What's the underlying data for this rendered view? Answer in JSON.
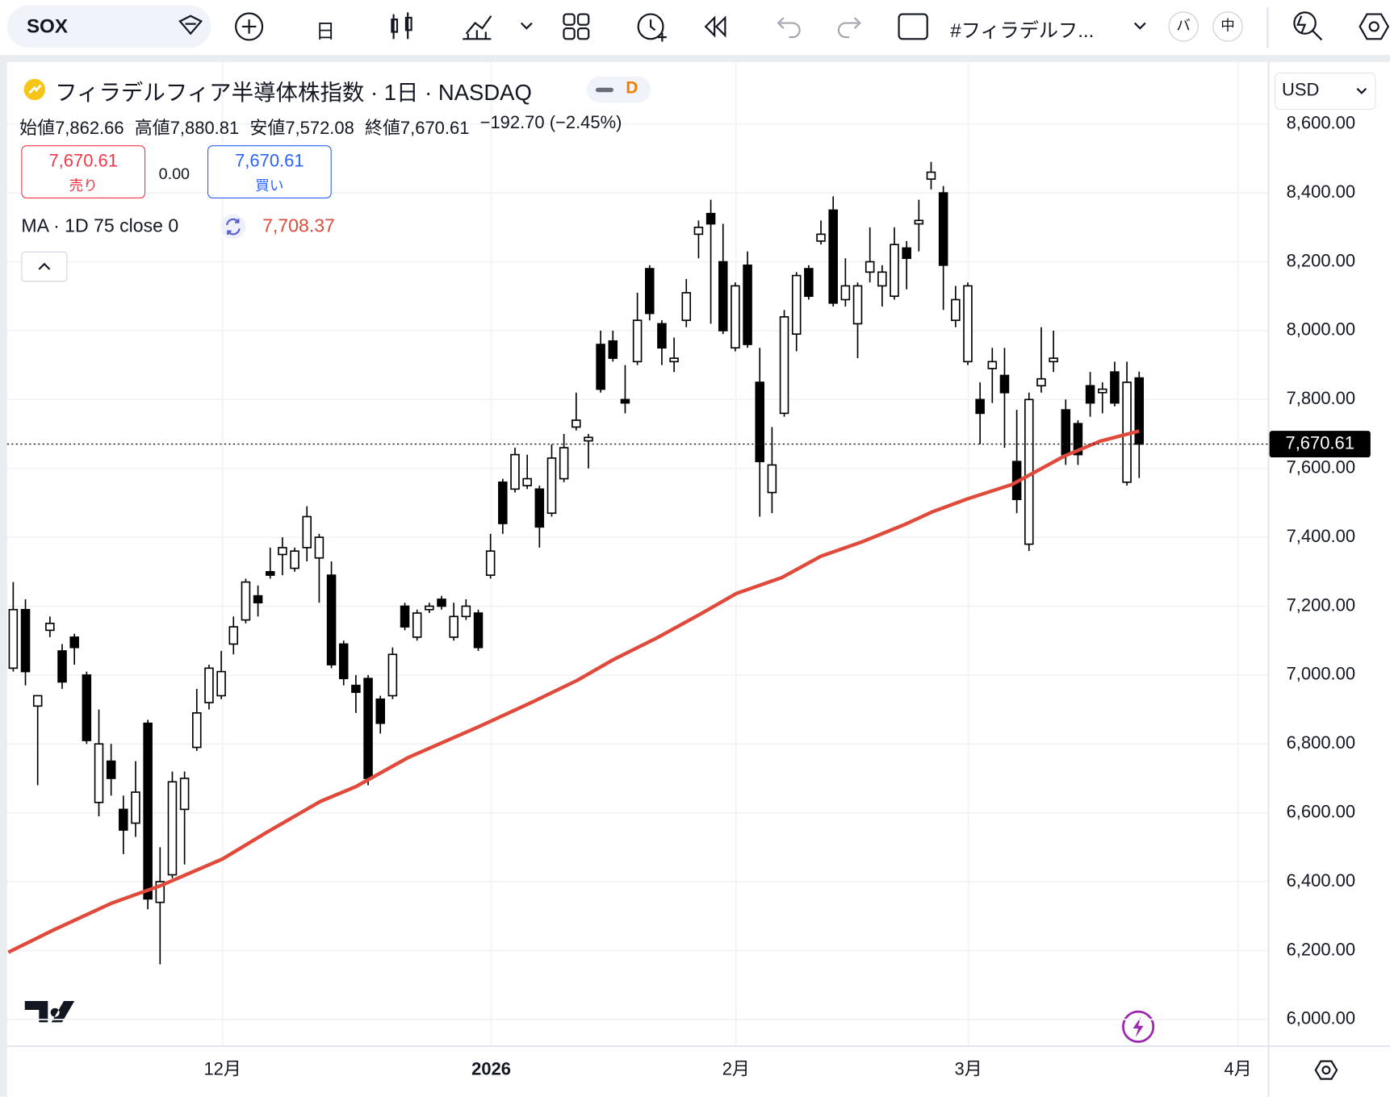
{
  "toolbar": {
    "symbol": "SOX",
    "interval": "日",
    "layout_name": "#フィラデルフ...",
    "btn_left": "バ",
    "btn_right": "中"
  },
  "header": {
    "title": "フィラデルフィア半導体株指数 · 1日 · NASDAQ",
    "badge": "D",
    "ohlc": [
      {
        "label": "始値",
        "value": "7,862.66"
      },
      {
        "label": "高値",
        "value": "7,880.81"
      },
      {
        "label": "安値",
        "value": "7,572.08"
      },
      {
        "label": "終値",
        "value": "7,670.61"
      }
    ],
    "change": "−192.70 (−2.45%)",
    "sell": {
      "price": "7,670.61",
      "label": "売り"
    },
    "spread": "0.00",
    "buy": {
      "price": "7,670.61",
      "label": "買い"
    },
    "indicator": {
      "label": "MA · 1D 75 close 0",
      "value": "7,708.37"
    },
    "currency": "USD",
    "last_price_tag": "7,670.61"
  },
  "chart_data": {
    "type": "candlestick",
    "up_color": "#ffffff",
    "down_color": "#000000",
    "edge_color": "#000000",
    "open": [
      7020,
      7190,
      6910,
      7130,
      7070,
      7110,
      7000,
      6630,
      6750,
      6610,
      6570,
      6860,
      6340,
      6420,
      6610,
      6790,
      6920,
      6940,
      7090,
      7160,
      7230,
      7300,
      7350,
      7310,
      7370,
      7340,
      7290,
      7090,
      6970,
      6990,
      6930,
      6940,
      7200,
      7110,
      7190,
      7220,
      7110,
      7170,
      7180,
      7290,
      7560,
      7540,
      7550,
      7540,
      7470,
      7570,
      7720,
      7680,
      7960,
      7970,
      7800,
      7910,
      8180,
      8020,
      7910,
      8030,
      8280,
      8340,
      8200,
      7950,
      8190,
      7850,
      7530,
      7760,
      7990,
      8180,
      8260,
      8350,
      8090,
      8020,
      8170,
      8130,
      8100,
      8240,
      8310,
      8440,
      8400,
      8030,
      7910,
      7800,
      7890,
      7870,
      7620,
      7380,
      7840,
      7910,
      7770,
      7730,
      7840,
      7820,
      7880,
      7560,
      7862.66
    ],
    "high": [
      7270,
      7220,
      6940,
      7170,
      7090,
      7120,
      7010,
      6900,
      6800,
      6650,
      6750,
      6870,
      6500,
      6720,
      6720,
      6960,
      7030,
      7070,
      7170,
      7280,
      7260,
      7370,
      7400,
      7370,
      7490,
      7410,
      7330,
      7100,
      7000,
      7000,
      6940,
      7080,
      7210,
      7190,
      7210,
      7230,
      7210,
      7220,
      7190,
      7410,
      7570,
      7660,
      7640,
      7550,
      7670,
      7700,
      7820,
      7700,
      8000,
      8000,
      7900,
      8110,
      8190,
      8030,
      7980,
      8150,
      8320,
      8380,
      8310,
      8140,
      8230,
      7950,
      7720,
      8060,
      8170,
      8190,
      8320,
      8390,
      8210,
      8140,
      8300,
      8190,
      8300,
      8260,
      8380,
      8490,
      8420,
      8130,
      8140,
      7850,
      7950,
      7950,
      7770,
      7820,
      8010,
      8000,
      7800,
      7740,
      7880,
      7850,
      7910,
      7910,
      7880.81
    ],
    "low": [
      7010,
      6970,
      6680,
      7110,
      6960,
      7030,
      6800,
      6590,
      6650,
      6480,
      6530,
      6320,
      6160,
      6410,
      6450,
      6780,
      6900,
      6930,
      7060,
      7150,
      7170,
      7280,
      7290,
      7300,
      7330,
      7210,
      7020,
      6970,
      6890,
      6680,
      6830,
      6930,
      7130,
      7100,
      7180,
      7190,
      7100,
      7160,
      7070,
      7280,
      7410,
      7530,
      7540,
      7370,
      7460,
      7560,
      7710,
      7600,
      7820,
      7910,
      7760,
      7900,
      8030,
      7900,
      7880,
      8010,
      8210,
      8020,
      7990,
      7940,
      7950,
      7460,
      7470,
      7750,
      7940,
      8090,
      8250,
      8070,
      8070,
      7920,
      8140,
      8070,
      8090,
      8120,
      8230,
      8410,
      8060,
      8010,
      7900,
      7670,
      7790,
      7660,
      7470,
      7360,
      7820,
      7880,
      7610,
      7610,
      7750,
      7760,
      7780,
      7550,
      7572.08
    ],
    "close": [
      7190,
      7010,
      6940,
      7150,
      6980,
      7080,
      6810,
      6800,
      6700,
      6550,
      6660,
      6350,
      6400,
      6690,
      6700,
      6890,
      7020,
      7010,
      7140,
      7270,
      7210,
      7290,
      7370,
      7360,
      7460,
      7400,
      7030,
      6990,
      6950,
      6700,
      6860,
      7060,
      7140,
      7180,
      7200,
      7200,
      7170,
      7200,
      7080,
      7360,
      7440,
      7640,
      7570,
      7430,
      7630,
      7660,
      7740,
      7690,
      7830,
      7920,
      7790,
      8030,
      8050,
      7950,
      7920,
      8110,
      8300,
      8310,
      8000,
      8130,
      7960,
      7620,
      7610,
      8040,
      8160,
      8100,
      8280,
      8080,
      8130,
      8130,
      8200,
      8170,
      8250,
      8210,
      8320,
      8460,
      8190,
      8090,
      8130,
      7760,
      7910,
      7820,
      7510,
      7800,
      7860,
      7920,
      7640,
      7640,
      7790,
      7830,
      7790,
      7850,
      7670.61
    ],
    "ma": {
      "color": "#e04a3b",
      "x": [
        -0.4,
        3.3,
        8.0,
        12.0,
        17.1,
        20.7,
        25.1,
        28.0,
        32.3,
        38.1,
        42.5,
        46.1,
        49.0,
        52.6,
        56.2,
        59.1,
        62.8,
        66.0,
        69.3,
        72.9,
        75.1,
        78.0,
        81.6,
        85.9,
        88.8,
        92
      ],
      "values": [
        6195,
        6260,
        6337,
        6388,
        6466,
        6543,
        6633,
        6676,
        6761,
        6851,
        6923,
        6985,
        7044,
        7108,
        7178,
        7237,
        7283,
        7345,
        7386,
        7438,
        7474,
        7512,
        7553,
        7636,
        7679,
        7708.37
      ]
    },
    "xlim": [
      -0.5,
      102.5
    ],
    "xticks": [
      {
        "value": 17.1,
        "label": "12月"
      },
      {
        "value": 39.06,
        "label": "2026"
      },
      {
        "value": 59.06,
        "label": "2月"
      },
      {
        "value": 78.04,
        "label": "3月"
      },
      {
        "value": 100.07,
        "label": "4月"
      }
    ],
    "ylim": [
      5925,
      8780
    ],
    "yticks": [
      {
        "value": 6000,
        "label": "6,000.00"
      },
      {
        "value": 6200,
        "label": "6,200.00"
      },
      {
        "value": 6400,
        "label": "6,400.00"
      },
      {
        "value": 6600,
        "label": "6,600.00"
      },
      {
        "value": 6800,
        "label": "6,800.00"
      },
      {
        "value": 7000,
        "label": "7,000.00"
      },
      {
        "value": 7200,
        "label": "7,200.00"
      },
      {
        "value": 7400,
        "label": "7,400.00"
      },
      {
        "value": 7600,
        "label": "7,600.00"
      },
      {
        "value": 7800,
        "label": "7,800.00"
      },
      {
        "value": 8000,
        "label": "8,000.00"
      },
      {
        "value": 8200,
        "label": "8,200.00"
      },
      {
        "value": 8400,
        "label": "8,400.00"
      },
      {
        "value": 8600,
        "label": "8,600.00"
      }
    ],
    "grid": true
  }
}
